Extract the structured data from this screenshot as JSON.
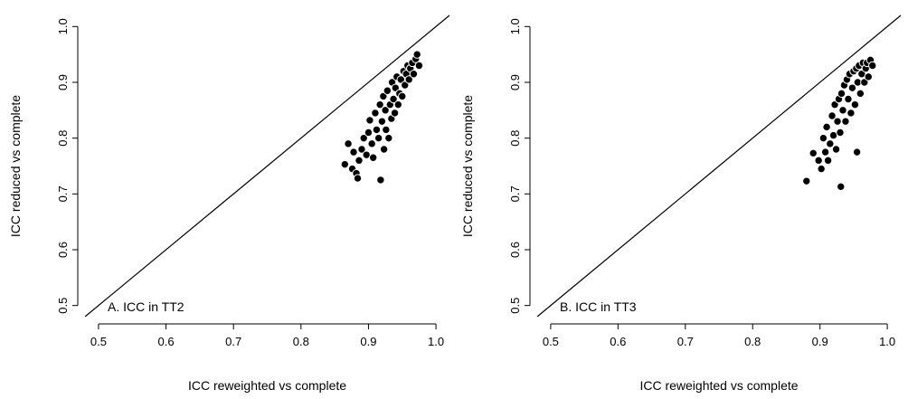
{
  "chart_data": [
    {
      "type": "scatter",
      "panel_label": "A. ICC in TT2",
      "xlabel": "ICC reweighted vs complete",
      "ylabel": "ICC reduced vs complete",
      "xlim": [
        0.5,
        1.0
      ],
      "ylim": [
        0.5,
        1.0
      ],
      "xticks": [
        "0.5",
        "0.6",
        "0.7",
        "0.8",
        "0.9",
        "1.0"
      ],
      "yticks": [
        "0.5",
        "0.6",
        "0.7",
        "0.8",
        "0.9",
        "1.0"
      ],
      "reference_line": "y = x",
      "grid": false,
      "series": [
        {
          "marker_color": "#000000",
          "marker_edge": "#ffffff",
          "points": [
            [
              0.865,
              0.753
            ],
            [
              0.87,
              0.79
            ],
            [
              0.876,
              0.745
            ],
            [
              0.882,
              0.737
            ],
            [
              0.884,
              0.728
            ],
            [
              0.878,
              0.775
            ],
            [
              0.886,
              0.76
            ],
            [
              0.89,
              0.78
            ],
            [
              0.893,
              0.8
            ],
            [
              0.897,
              0.77
            ],
            [
              0.9,
              0.81
            ],
            [
              0.902,
              0.832
            ],
            [
              0.905,
              0.79
            ],
            [
              0.907,
              0.765
            ],
            [
              0.91,
              0.845
            ],
            [
              0.912,
              0.815
            ],
            [
              0.915,
              0.8
            ],
            [
              0.917,
              0.86
            ],
            [
              0.918,
              0.725
            ],
            [
              0.92,
              0.83
            ],
            [
              0.922,
              0.875
            ],
            [
              0.923,
              0.78
            ],
            [
              0.925,
              0.85
            ],
            [
              0.926,
              0.815
            ],
            [
              0.928,
              0.885
            ],
            [
              0.93,
              0.8
            ],
            [
              0.932,
              0.86
            ],
            [
              0.934,
              0.835
            ],
            [
              0.935,
              0.9
            ],
            [
              0.937,
              0.87
            ],
            [
              0.939,
              0.845
            ],
            [
              0.94,
              0.89
            ],
            [
              0.942,
              0.91
            ],
            [
              0.944,
              0.86
            ],
            [
              0.946,
              0.88
            ],
            [
              0.948,
              0.905
            ],
            [
              0.95,
              0.875
            ],
            [
              0.952,
              0.92
            ],
            [
              0.954,
              0.895
            ],
            [
              0.956,
              0.915
            ],
            [
              0.958,
              0.93
            ],
            [
              0.96,
              0.905
            ],
            [
              0.962,
              0.925
            ],
            [
              0.965,
              0.935
            ],
            [
              0.967,
              0.915
            ],
            [
              0.97,
              0.942
            ],
            [
              0.972,
              0.95
            ],
            [
              0.975,
              0.93
            ]
          ]
        }
      ]
    },
    {
      "type": "scatter",
      "panel_label": "B. ICC in TT3",
      "xlabel": "ICC reweighted vs complete",
      "ylabel": "ICC reduced vs complete",
      "xlim": [
        0.5,
        1.0
      ],
      "ylim": [
        0.5,
        1.0
      ],
      "xticks": [
        "0.5",
        "0.6",
        "0.7",
        "0.8",
        "0.9",
        "1.0"
      ],
      "yticks": [
        "0.5",
        "0.6",
        "0.7",
        "0.8",
        "0.9",
        "1.0"
      ],
      "reference_line": "y = x",
      "grid": false,
      "series": [
        {
          "marker_color": "#000000",
          "marker_edge": "#ffffff",
          "points": [
            [
              0.88,
              0.723
            ],
            [
              0.89,
              0.773
            ],
            [
              0.898,
              0.76
            ],
            [
              0.902,
              0.745
            ],
            [
              0.905,
              0.8
            ],
            [
              0.908,
              0.775
            ],
            [
              0.91,
              0.82
            ],
            [
              0.912,
              0.76
            ],
            [
              0.915,
              0.79
            ],
            [
              0.918,
              0.84
            ],
            [
              0.92,
              0.805
            ],
            [
              0.922,
              0.86
            ],
            [
              0.924,
              0.78
            ],
            [
              0.926,
              0.83
            ],
            [
              0.928,
              0.87
            ],
            [
              0.93,
              0.81
            ],
            [
              0.931,
              0.713
            ],
            [
              0.932,
              0.88
            ],
            [
              0.934,
              0.85
            ],
            [
              0.936,
              0.895
            ],
            [
              0.938,
              0.83
            ],
            [
              0.94,
              0.905
            ],
            [
              0.942,
              0.87
            ],
            [
              0.944,
              0.915
            ],
            [
              0.946,
              0.845
            ],
            [
              0.948,
              0.89
            ],
            [
              0.95,
              0.92
            ],
            [
              0.952,
              0.86
            ],
            [
              0.954,
              0.925
            ],
            [
              0.955,
              0.775
            ],
            [
              0.956,
              0.9
            ],
            [
              0.958,
              0.93
            ],
            [
              0.96,
              0.88
            ],
            [
              0.962,
              0.915
            ],
            [
              0.964,
              0.935
            ],
            [
              0.966,
              0.9
            ],
            [
              0.968,
              0.925
            ],
            [
              0.97,
              0.935
            ],
            [
              0.972,
              0.91
            ],
            [
              0.975,
              0.94
            ],
            [
              0.978,
              0.93
            ]
          ]
        }
      ]
    }
  ]
}
